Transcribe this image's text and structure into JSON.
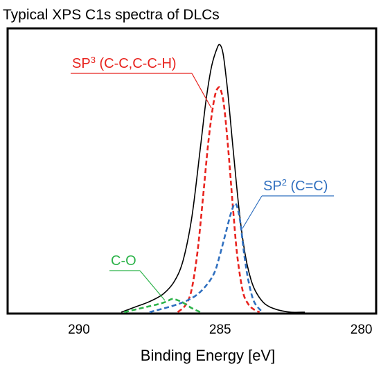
{
  "chart_data": {
    "type": "line",
    "title": "Typical XPS C1s spectra of DLCs",
    "xlabel": "Binding Energy [eV]",
    "ylabel": "",
    "x_reversed": true,
    "xlim": [
      292.5,
      279.5
    ],
    "ylim": [
      0,
      1.07
    ],
    "xticks": [
      290,
      285,
      280
    ],
    "xtick_labels": [
      "290",
      "285",
      "280"
    ],
    "grid": false,
    "legend": "none",
    "series": [
      {
        "key": "total",
        "color": "#000000",
        "dash": "solid",
        "x": [
          288.5,
          288.0,
          287.5,
          287.0,
          286.6,
          286.3,
          286.0,
          285.7,
          285.5,
          285.3,
          285.1,
          285.0,
          284.9,
          284.8,
          284.7,
          284.5,
          284.3,
          284.1,
          283.9,
          283.7,
          283.4,
          283.0,
          282.5,
          282.0
        ],
        "y": [
          0.0,
          0.02,
          0.04,
          0.07,
          0.12,
          0.2,
          0.36,
          0.62,
          0.8,
          0.93,
          1.0,
          1.01,
          0.98,
          0.9,
          0.8,
          0.57,
          0.36,
          0.21,
          0.12,
          0.07,
          0.03,
          0.01,
          0.0,
          0.0
        ]
      },
      {
        "key": "sp3",
        "color": "#e8231e",
        "dash": "dashed",
        "x": [
          286.5,
          286.2,
          286.0,
          285.8,
          285.6,
          285.4,
          285.2,
          285.05,
          284.95,
          284.85,
          284.7,
          284.55,
          284.4,
          284.2,
          284.0,
          283.8,
          283.6
        ],
        "y": [
          0.0,
          0.03,
          0.09,
          0.23,
          0.44,
          0.66,
          0.81,
          0.85,
          0.83,
          0.77,
          0.6,
          0.4,
          0.22,
          0.08,
          0.03,
          0.01,
          0.0
        ]
      },
      {
        "key": "sp2",
        "color": "#2f6fbf",
        "dash": "dashed",
        "x": [
          287.5,
          286.5,
          285.9,
          285.5,
          285.2,
          285.0,
          284.8,
          284.6,
          284.45,
          284.3,
          284.15,
          284.0,
          283.8,
          283.5
        ],
        "y": [
          0.0,
          0.03,
          0.06,
          0.1,
          0.15,
          0.22,
          0.3,
          0.38,
          0.41,
          0.35,
          0.22,
          0.12,
          0.04,
          0.0
        ]
      },
      {
        "key": "co",
        "color": "#2db34a",
        "dash": "dashed",
        "x": [
          288.4,
          288.0,
          287.6,
          287.2,
          286.9,
          286.7,
          286.5,
          286.3,
          286.0,
          285.7
        ],
        "y": [
          0.0,
          0.01,
          0.02,
          0.03,
          0.04,
          0.05,
          0.045,
          0.035,
          0.015,
          0.0
        ]
      }
    ],
    "annotations": [
      {
        "key": "sp3",
        "base": "SP",
        "sup": "3",
        "rest": " (C-C,C-C-H)",
        "color": "#e8231e"
      },
      {
        "key": "sp2",
        "base": "SP",
        "sup": "2",
        "rest": " (C=C)",
        "color": "#2f6fbf"
      },
      {
        "key": "co",
        "base": "C-O",
        "sup": "",
        "rest": "",
        "color": "#2db34a"
      }
    ]
  }
}
